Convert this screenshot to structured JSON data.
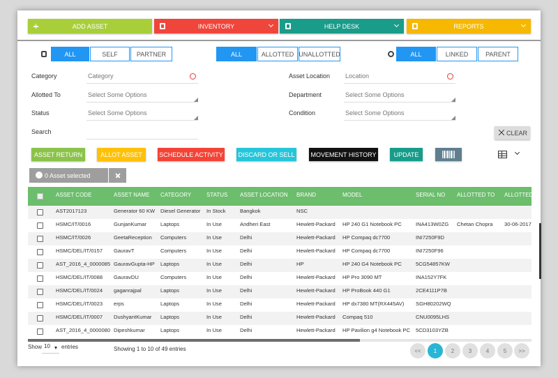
{
  "nav": [
    "ADD ASSET",
    "INVENTORY",
    "HELP DESK",
    "REPORTS"
  ],
  "filters": [
    [
      "ALL",
      "SELF",
      "PARTNER"
    ],
    [
      "ALL",
      "ALLOTTED",
      "UNALLOTTED"
    ],
    [
      "ALL",
      "LINKED",
      "PARENT"
    ]
  ],
  "form": {
    "left": [
      {
        "label": "Category",
        "placeholder": "Category"
      },
      {
        "label": "Allotted To",
        "placeholder": "Select Some Options"
      },
      {
        "label": "Status",
        "placeholder": "Select Some Options"
      },
      {
        "label": "Search"
      }
    ],
    "right": [
      {
        "label": "Asset Location",
        "placeholder": "Location"
      },
      {
        "label": "Department",
        "placeholder": "Select Some Options"
      },
      {
        "label": "Condition",
        "placeholder": "Select Some Options"
      }
    ]
  },
  "clear": "CLEAR",
  "actions": [
    "ASSET RETURN",
    "ALLOT ASSET",
    "SCHEDULE ACTIVITY",
    "DISCARD OR SELL",
    "MOVEMENT HISTORY",
    "UPDATE"
  ],
  "selection": "0 Asset selected",
  "table": {
    "headers": [
      "ASSET CODE",
      "ASSET NAME",
      "CATEGORY",
      "STATUS",
      "ASSET LOCATION",
      "BRAND",
      "MODEL",
      "SERIAL NO",
      "ALLOTTED TO",
      "ALLOTTED"
    ],
    "rows": [
      [
        "AST2017123",
        "Generator 60 KW",
        "Diesel Generator",
        "In Stock",
        "Bangkok",
        "NSC"
      ],
      [
        "HSMC/IT/0016",
        "GunjanKumar",
        "Laptops",
        "In Use",
        "Andheri East",
        "Hewlett-Packard",
        "HP 240 G1 Notebook PC",
        "INA413W0ZG",
        "Chetan Chopra",
        "30-06-2017"
      ],
      [
        "HSMC/IT/0026",
        "GeetaReception",
        "Computers",
        "In Use",
        "Delhi",
        "Hewlett-Packard",
        "HP Compaq dc7700",
        "INI7250F9D"
      ],
      [
        "HSMC/DEL/IT/0157",
        "GauravT",
        "Computers",
        "In Use",
        "Delhi",
        "Hewlett-Packard",
        "HP Compaq dc7700",
        "INI7250F96"
      ],
      [
        "AST_2016_4_0000085",
        "GauravGupta-HP",
        "Laptops",
        "In Use",
        "Delhi",
        "HP",
        "HP 240 G4 Notebook PC",
        "5CG54857KW"
      ],
      [
        "HSMC/DEL/IT/0088",
        "GauravDU",
        "Computers",
        "In Use",
        "Delhi",
        "Hewlett-Packard",
        "HP Pro 3090 MT",
        "INA152Y7FK"
      ],
      [
        "HSMC/DEL/IT/0024",
        "gaganrajpal",
        "Laptops",
        "In Use",
        "Delhi",
        "Hewlett-Packard",
        "HP ProBook 440 G1",
        "2CE4111P7B"
      ],
      [
        "HSMC/DEL/IT/0023",
        "erps",
        "Laptops",
        "In Use",
        "Delhi",
        "Hewlett-Packard",
        "HP dx7380 MT(RX445AV)",
        "SGH80202WQ"
      ],
      [
        "HSMC/DEL/IT/0007",
        "DushyantKumar",
        "Laptops",
        "In Use",
        "Delhi",
        "Hewlett-Packard",
        "Compaq 510",
        "CNU0095LHS"
      ],
      [
        "AST_2016_4_0000080",
        "Dipeshkumar",
        "Laptops",
        "In Use",
        "Delhi",
        "Hewlett-Packard",
        "HP Pavilion g4 Notebook PC",
        "5CD3103YZB"
      ]
    ]
  },
  "footer": {
    "show": "Show",
    "page_size": "10",
    "entries": "entries",
    "info": "Showing 1 to 10 of 49 entries",
    "prev": "<<",
    "pages": [
      "1",
      "2",
      "3",
      "4",
      "5"
    ],
    "next": ">>"
  }
}
